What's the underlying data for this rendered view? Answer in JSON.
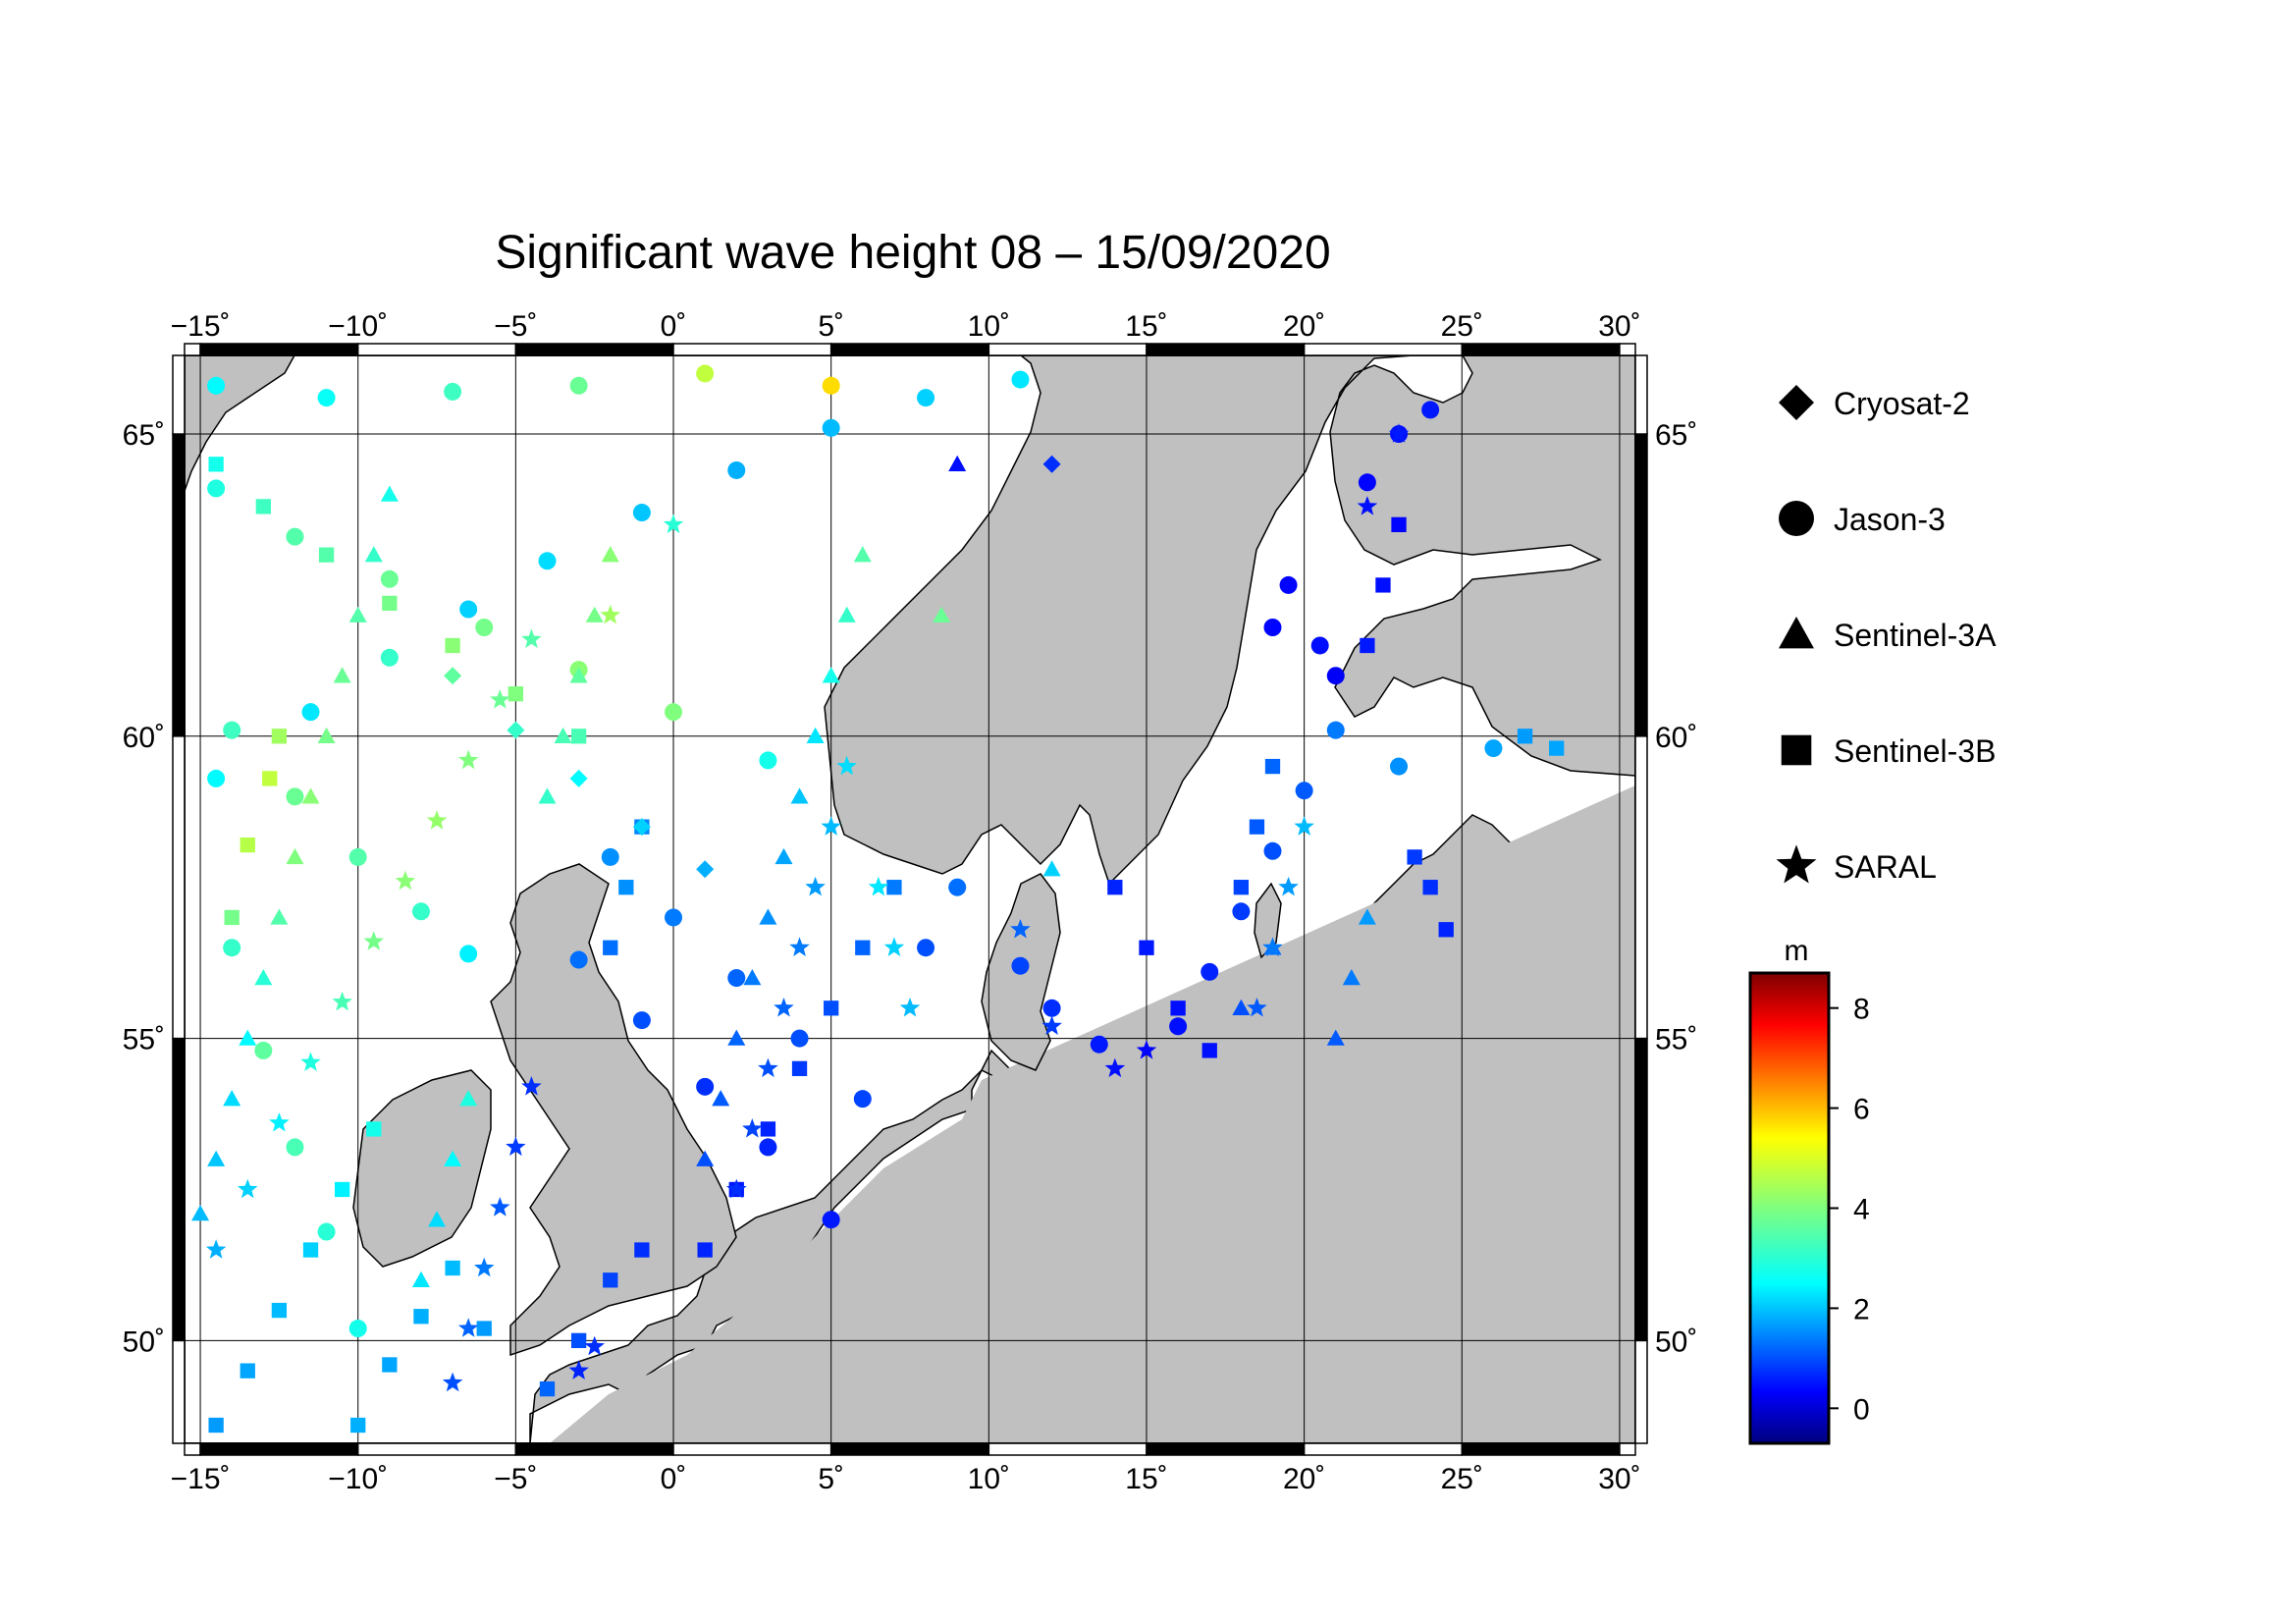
{
  "title": "Significant wave height 08 – 15/09/2020",
  "map": {
    "lon_range": [
      -15.5,
      30.5
    ],
    "lat_range": [
      48.3,
      66.3
    ],
    "lon_ticks": [
      -15,
      -10,
      -5,
      0,
      5,
      10,
      15,
      20,
      25,
      30
    ],
    "lon_tick_labels": [
      "−15˚",
      "−10˚",
      "−5˚",
      "0˚",
      "5˚",
      "10˚",
      "15˚",
      "20˚",
      "25˚",
      "30˚"
    ],
    "lat_ticks": [
      50,
      55,
      60,
      65
    ],
    "lat_tick_labels": [
      "50˚",
      "55˚",
      "60˚",
      "65˚"
    ],
    "gridlines": true,
    "land_color": "#c0c0c0",
    "sea_color": "#ffffff"
  },
  "legend": {
    "placement": "right",
    "items": [
      {
        "label": "Cryosat-2",
        "symbol": "diamond-icon"
      },
      {
        "label": "Jason-3",
        "symbol": "circle-icon"
      },
      {
        "label": "Sentinel-3A",
        "symbol": "triangle-icon"
      },
      {
        "label": "Sentinel-3B",
        "symbol": "square-icon"
      },
      {
        "label": "SARAL",
        "symbol": "star-icon"
      }
    ]
  },
  "colorbar": {
    "unit": "m",
    "range": [
      -0.7,
      8.7
    ],
    "ticks": [
      0,
      2,
      4,
      6,
      8
    ],
    "tick_labels": [
      "0",
      "2",
      "4",
      "6",
      "8"
    ],
    "colormap": "jet"
  },
  "chart_data": {
    "type": "scatter",
    "title": "Significant wave height 08 – 15/09/2020",
    "color_unit": "m",
    "series": [
      {
        "name": "Jason-3",
        "marker": "circle",
        "points": [
          [
            -14.5,
            59.3,
            2.8
          ],
          [
            -11.5,
            60.4,
            2.6
          ],
          [
            -9,
            61.3,
            3.3
          ],
          [
            -6.5,
            62.1,
            2.4
          ],
          [
            -4,
            62.9,
            2.5
          ],
          [
            -1,
            63.7,
            2.3
          ],
          [
            2,
            64.4,
            2.1
          ],
          [
            5,
            65.1,
            2.2
          ],
          [
            8,
            65.6,
            2.4
          ],
          [
            11,
            65.9,
            2.6
          ],
          [
            -14.5,
            64.1,
            3.1
          ],
          [
            -12,
            63.3,
            3.6
          ],
          [
            -9,
            62.6,
            3.8
          ],
          [
            -6,
            61.8,
            3.9
          ],
          [
            -3,
            61.1,
            4.1
          ],
          [
            0,
            60.4,
            4.0
          ],
          [
            3,
            59.6,
            3.0
          ],
          [
            -14,
            60.1,
            3.4
          ],
          [
            -12,
            59.0,
            3.8
          ],
          [
            -10,
            58.0,
            3.6
          ],
          [
            -8,
            57.1,
            3.3
          ],
          [
            -6.5,
            56.4,
            2.7
          ],
          [
            -14.5,
            65.8,
            2.8
          ],
          [
            -11,
            65.6,
            2.9
          ],
          [
            -7,
            65.7,
            3.4
          ],
          [
            -3,
            65.8,
            3.8
          ],
          [
            1,
            66.0,
            4.6
          ],
          [
            5,
            65.8,
            5.5
          ],
          [
            -14,
            56.5,
            3.3
          ],
          [
            -13,
            54.8,
            3.7
          ],
          [
            -12,
            53.2,
            3.5
          ],
          [
            -11,
            51.8,
            3.2
          ],
          [
            -10,
            50.2,
            3.0
          ],
          [
            -3,
            56.3,
            1.5
          ],
          [
            -1,
            55.3,
            1.2
          ],
          [
            1,
            54.2,
            0.9
          ],
          [
            3,
            53.2,
            0.8
          ],
          [
            5,
            52.0,
            0.7
          ],
          [
            -2,
            58.0,
            1.8
          ],
          [
            0,
            57.0,
            1.6
          ],
          [
            2,
            56.0,
            1.4
          ],
          [
            4,
            55.0,
            1.2
          ],
          [
            6,
            54.0,
            1.1
          ],
          [
            8,
            56.5,
            1.2
          ],
          [
            9,
            57.5,
            1.5
          ],
          [
            11,
            56.2,
            1.1
          ],
          [
            12,
            55.5,
            0.9
          ],
          [
            13.5,
            54.9,
            0.7
          ],
          [
            16,
            55.2,
            0.6
          ],
          [
            17,
            56.1,
            0.8
          ],
          [
            18,
            57.1,
            1.0
          ],
          [
            19,
            58.1,
            1.2
          ],
          [
            20,
            59.1,
            1.3
          ],
          [
            21,
            60.1,
            1.6
          ],
          [
            23,
            59.5,
            1.8
          ],
          [
            26,
            59.8,
            2.0
          ],
          [
            22,
            64.2,
            0.5
          ],
          [
            23,
            65.0,
            0.6
          ],
          [
            24,
            65.4,
            0.7
          ],
          [
            19.5,
            62.5,
            0.5
          ],
          [
            20.5,
            61.5,
            0.6
          ],
          [
            21,
            61.0,
            0.4
          ],
          [
            19,
            61.8,
            0.5
          ]
        ]
      },
      {
        "name": "Sentinel-3A",
        "marker": "triangle",
        "points": [
          [
            -15,
            52.1,
            2.2
          ],
          [
            -14.5,
            53.0,
            2.3
          ],
          [
            -14,
            54.0,
            2.5
          ],
          [
            -13.5,
            55.0,
            2.8
          ],
          [
            -13,
            56.0,
            3.2
          ],
          [
            -12.5,
            57.0,
            3.6
          ],
          [
            -12,
            58.0,
            4.0
          ],
          [
            -11.5,
            59.0,
            4.1
          ],
          [
            -11,
            60.0,
            3.9
          ],
          [
            -10.5,
            61.0,
            3.8
          ],
          [
            -10,
            62.0,
            3.6
          ],
          [
            -9.5,
            63.0,
            3.3
          ],
          [
            -9,
            64.0,
            3.0
          ],
          [
            -8,
            51.0,
            2.6
          ],
          [
            -7.5,
            52.0,
            2.5
          ],
          [
            -7,
            53.0,
            2.8
          ],
          [
            -6.5,
            54.0,
            3.1
          ],
          [
            -4,
            59.0,
            3.3
          ],
          [
            -3.5,
            60.0,
            3.5
          ],
          [
            -3,
            61.0,
            3.7
          ],
          [
            -2.5,
            62.0,
            3.9
          ],
          [
            -2,
            63.0,
            4.1
          ],
          [
            1,
            53.0,
            1.2
          ],
          [
            1.5,
            54.0,
            1.3
          ],
          [
            2,
            55.0,
            1.4
          ],
          [
            2.5,
            56.0,
            1.6
          ],
          [
            3,
            57.0,
            1.8
          ],
          [
            3.5,
            58.0,
            2.0
          ],
          [
            4,
            59.0,
            2.3
          ],
          [
            4.5,
            60.0,
            2.6
          ],
          [
            5,
            61.0,
            3.0
          ],
          [
            5.5,
            62.0,
            3.3
          ],
          [
            6,
            63.0,
            3.6
          ],
          [
            22,
            57.0,
            1.9
          ],
          [
            21.5,
            56.0,
            1.6
          ],
          [
            21,
            55.0,
            1.3
          ],
          [
            19,
            56.5,
            1.5
          ],
          [
            18,
            55.5,
            1.2
          ],
          [
            9,
            64.5,
            0.6
          ],
          [
            8.5,
            62.0,
            3.8
          ],
          [
            12,
            57.8,
            2.4
          ]
        ]
      },
      {
        "name": "Sentinel-3B",
        "marker": "square",
        "points": [
          [
            -14.5,
            48.6,
            1.9
          ],
          [
            -13.5,
            49.5,
            2.0
          ],
          [
            -12.5,
            50.5,
            2.2
          ],
          [
            -11.5,
            51.5,
            2.4
          ],
          [
            -10.5,
            52.5,
            2.7
          ],
          [
            -9.5,
            53.5,
            3.0
          ],
          [
            -10,
            48.6,
            2.1
          ],
          [
            -9,
            49.6,
            2.0
          ],
          [
            -8,
            50.4,
            2.1
          ],
          [
            -7,
            51.2,
            2.2
          ],
          [
            -6,
            50.2,
            1.9
          ],
          [
            -4,
            49.2,
            1.4
          ],
          [
            -3,
            50.0,
            1.2
          ],
          [
            -2,
            51.0,
            1.1
          ],
          [
            -1,
            51.5,
            0.9
          ],
          [
            1,
            51.5,
            0.8
          ],
          [
            2,
            52.5,
            0.7
          ],
          [
            3,
            53.5,
            0.8
          ],
          [
            4,
            54.5,
            1.0
          ],
          [
            5,
            55.5,
            1.2
          ],
          [
            6,
            56.5,
            1.4
          ],
          [
            7,
            57.5,
            1.6
          ],
          [
            -1,
            58.5,
            1.7
          ],
          [
            -1.5,
            57.5,
            1.8
          ],
          [
            -2,
            56.5,
            1.5
          ],
          [
            14,
            57.5,
            0.8
          ],
          [
            15,
            56.5,
            0.7
          ],
          [
            16,
            55.5,
            0.6
          ],
          [
            17,
            54.8,
            0.6
          ],
          [
            18,
            57.5,
            1.1
          ],
          [
            18.5,
            58.5,
            1.3
          ],
          [
            19,
            59.5,
            1.4
          ],
          [
            22,
            61.5,
            0.7
          ],
          [
            22.5,
            62.5,
            0.6
          ],
          [
            23,
            63.5,
            0.5
          ],
          [
            23.5,
            58.0,
            1.0
          ],
          [
            24,
            57.5,
            0.9
          ],
          [
            24.5,
            56.8,
            0.8
          ],
          [
            27,
            60.0,
            1.9
          ],
          [
            28,
            59.8,
            2.0
          ],
          [
            -14.5,
            64.5,
            3.0
          ],
          [
            -13,
            63.8,
            3.4
          ],
          [
            -11,
            63.0,
            3.6
          ],
          [
            -9,
            62.2,
            3.9
          ],
          [
            -7,
            61.5,
            4.1
          ],
          [
            -5,
            60.7,
            4.0
          ],
          [
            -3,
            60.0,
            3.5
          ],
          [
            -14,
            57.0,
            3.9
          ],
          [
            -13.5,
            58.2,
            4.5
          ],
          [
            -12.8,
            59.3,
            4.6
          ],
          [
            -12.5,
            60.0,
            4.3
          ]
        ]
      },
      {
        "name": "SARAL",
        "marker": "star",
        "points": [
          [
            -14.5,
            51.5,
            2.1
          ],
          [
            -13.5,
            52.5,
            2.4
          ],
          [
            -12.5,
            53.6,
            2.7
          ],
          [
            -11.5,
            54.6,
            3.1
          ],
          [
            -10.5,
            55.6,
            3.5
          ],
          [
            -9.5,
            56.6,
            3.9
          ],
          [
            -8.5,
            57.6,
            4.1
          ],
          [
            -7.5,
            58.6,
            4.2
          ],
          [
            -6.5,
            59.6,
            4.0
          ],
          [
            -5.5,
            60.6,
            3.8
          ],
          [
            -4.5,
            61.6,
            3.6
          ],
          [
            -7,
            49.3,
            1.2
          ],
          [
            -6.5,
            50.2,
            1.4
          ],
          [
            -6,
            51.2,
            1.6
          ],
          [
            -5.5,
            52.2,
            1.3
          ],
          [
            -5,
            53.2,
            1.0
          ],
          [
            -4.5,
            54.2,
            0.9
          ],
          [
            -3,
            49.5,
            0.8
          ],
          [
            -2.5,
            49.9,
            0.9
          ],
          [
            2,
            52.5,
            0.9
          ],
          [
            2.5,
            53.5,
            1.1
          ],
          [
            3,
            54.5,
            1.2
          ],
          [
            3.5,
            55.5,
            1.4
          ],
          [
            4,
            56.5,
            1.6
          ],
          [
            4.5,
            57.5,
            1.9
          ],
          [
            5,
            58.5,
            2.2
          ],
          [
            5.5,
            59.5,
            2.5
          ],
          [
            7.5,
            55.5,
            2.2
          ],
          [
            7,
            56.5,
            2.4
          ],
          [
            6.5,
            57.5,
            2.6
          ],
          [
            11,
            56.8,
            1.4
          ],
          [
            12,
            55.2,
            1.0
          ],
          [
            14,
            54.5,
            0.6
          ],
          [
            15,
            54.8,
            0.5
          ],
          [
            20,
            58.5,
            2.2
          ],
          [
            19.5,
            57.5,
            1.9
          ],
          [
            19,
            56.5,
            1.6
          ],
          [
            18.5,
            55.5,
            1.3
          ],
          [
            22,
            63.8,
            0.6
          ],
          [
            23,
            65.0,
            0.7
          ],
          [
            -2,
            62.0,
            4.3
          ],
          [
            0,
            63.5,
            3.2
          ]
        ]
      },
      {
        "name": "Cryosat-2",
        "marker": "diamond",
        "points": [
          [
            -3,
            59.3,
            2.8
          ],
          [
            -1,
            58.5,
            2.4
          ],
          [
            1,
            57.8,
            2.1
          ],
          [
            -5,
            60.1,
            3.3
          ],
          [
            -7,
            61.0,
            3.7
          ],
          [
            12,
            64.5,
            0.9
          ]
        ]
      }
    ]
  }
}
